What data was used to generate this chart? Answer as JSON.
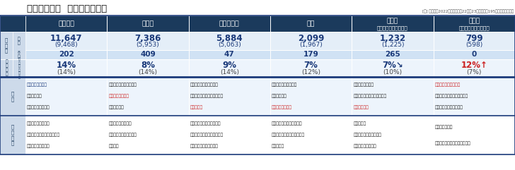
{
  "title": "主な食品分野  価格改定の動向",
  "note": "[注] （）内は2022年の実績値、22年・23年ともに計195社の値上げ品目数",
  "header_bg": "#1b3a5c",
  "body_light": "#e4eef8",
  "body_mid": "#d0e2f4",
  "body_lighter": "#edf4fc",
  "label_col_bg": "#cddaea",
  "reason_bg": "#edf4fc",
  "items_bg": "#ffffff",
  "divider_color": "#1b3a7a",
  "columns": [
    "加工食品",
    "調味料",
    "酒類・飲料",
    "菓子",
    "乳製品\n（牛乳・ヨーグルト）",
    "原材料\n（小麦粉・砂糖など）"
  ],
  "annual_main": [
    "11,647",
    "7,386",
    "5,884",
    "2,099",
    "1,232",
    "799"
  ],
  "annual_sub": [
    "(9,468)",
    "(5,953)",
    "(5,063)",
    "(1,967)",
    "(1,225)",
    "(598)"
  ],
  "aug_values": [
    "202",
    "409",
    "47",
    "179",
    "265",
    "0"
  ],
  "rate_main": [
    "14%",
    "8%",
    "9%",
    "7%",
    "7%",
    "12%"
  ],
  "rate_arrow": [
    "",
    "",
    "",
    "",
    "↘",
    "↑"
  ],
  "rate_sub": [
    "(14%)",
    "(14%)",
    "(14%)",
    "(12%)",
    "(10%)",
    "(7%)"
  ],
  "rate_main_colors": [
    "#1b3a7a",
    "#1b3a7a",
    "#1b3a7a",
    "#1b3a7a",
    "#1b3a7a",
    "#cc2222"
  ],
  "rate_arrow_colors": [
    "#1b3a7a",
    "#1b3a7a",
    "#1b3a7a",
    "#1b3a7a",
    "#1b3a7a",
    "#cc2222"
  ],
  "reasons": [
    [
      "包装資材費の上昇",
      "物流費の上昇",
      "電気・ガス代の上昇"
    ],
    [
      "砂糖、食用油の価格高騰",
      "包装資材費の上昇",
      "運送費の上昇"
    ],
    [
      "円安による輸入コスト増",
      "缶・ペットボトルなど包装資",
      "材費の上昇"
    ],
    [
      "カカオ原料の価格高騰",
      "物流費の上昇",
      "包装資材費の上昇"
    ],
    [
      "原材料価格の上昇",
      "包装資材・運搬コストの上昇",
      "飼料価格高騰"
    ],
    [
      "オリーブオイルの不作",
      "包装資材・運搬コストの上昇",
      "円安による輸入コスト増"
    ]
  ],
  "reason_highlight_idx": [
    0,
    1,
    2,
    2,
    2,
    0
  ],
  "reason_highlight_color": [
    "#1b3a7a",
    "#cc2222",
    "#cc2222",
    "#cc2222",
    "#cc2222",
    "#cc2222"
  ],
  "reason_bold_idx": [
    0,
    1,
    2,
    2,
    2,
    0
  ],
  "main_foods": [
    [
      "冷凍食品、水産缶詰",
      "シリアル食品、パックごはん",
      "チルド麺・カップ麺"
    ],
    [
      "ソース、ケチャップ",
      "みそ・しょうゆ、香辛料",
      "だし製品"
    ],
    [
      "輸入ワイン・ウィスキー類",
      "発泡酒・新ジャンル・日本酒",
      "エナジードリンク・豆乳"
    ],
    [
      "米菓、アイスクリーム製品",
      "スナック・チョコレート菓子",
      "ゼリー製品"
    ],
    [
      "パック牛乳",
      "ヨーグルト・乳酸菌飲料",
      "乳幼児用粉ミルク類"
    ],
    [
      "オリーブオイル",
      "小麦粉製品、プレミックス製品",
      ""
    ]
  ]
}
